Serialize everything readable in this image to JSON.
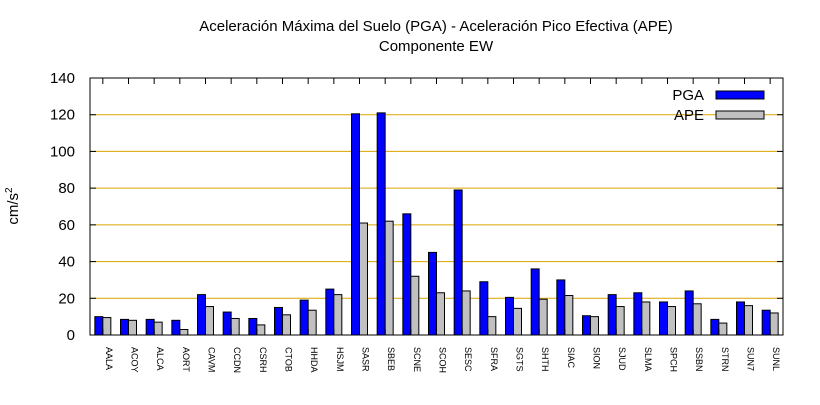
{
  "chart_data": {
    "type": "bar",
    "title": "Aceleración Máxima del Suelo (PGA) -  Aceleración Pico Efectiva (APE)",
    "subtitle": "Componente EW",
    "ylabel_base": "cm/s",
    "ylabel_sup": "2",
    "xlabel": "",
    "ylim": [
      0,
      140
    ],
    "yticks": [
      0,
      20,
      40,
      60,
      80,
      100,
      120,
      140
    ],
    "grid": true,
    "legend_position": "top-right",
    "categories": [
      "AALA",
      "ACOY",
      "ALCA",
      "AORT",
      "CAVM",
      "CCDN",
      "CSRH",
      "CTOB",
      "HHDA",
      "HSJM",
      "SASR",
      "SBEB",
      "SCNE",
      "SCOH",
      "SESC",
      "SFRA",
      "SGTS",
      "SHTH",
      "SIAC",
      "SION",
      "SJUD",
      "SLMA",
      "SPCH",
      "SSBN",
      "STRN",
      "SUN7",
      "SUNL"
    ],
    "series": [
      {
        "name": "PGA",
        "color": "#0000ff",
        "values": [
          10,
          8.5,
          8.5,
          8,
          22,
          12.5,
          9,
          15,
          19,
          25,
          120.5,
          121,
          66,
          45,
          79,
          29,
          20.5,
          36,
          30,
          10.5,
          22,
          23,
          18,
          24,
          8.5,
          18,
          13.5
        ]
      },
      {
        "name": "APE",
        "color": "#c0c0c0",
        "values": [
          9.5,
          8,
          7,
          3,
          15.5,
          9,
          5.5,
          11,
          13.5,
          22,
          61,
          62,
          32,
          23,
          24,
          10,
          14.5,
          19.5,
          21.5,
          10,
          15.5,
          18,
          15.5,
          17,
          6.5,
          16,
          12
        ]
      }
    ]
  }
}
